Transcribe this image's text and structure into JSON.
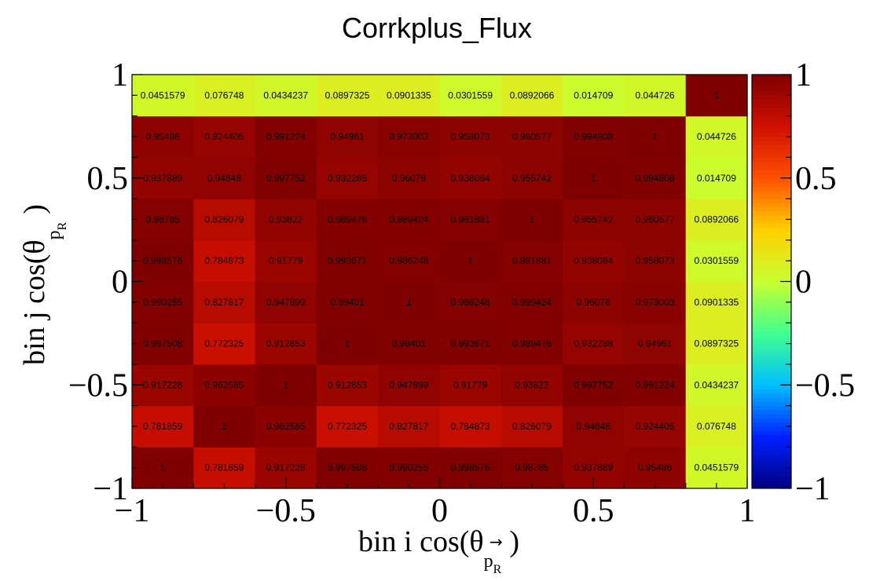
{
  "chart_data": {
    "type": "heatmap",
    "title": "Corrkplus_Flux",
    "xlabel": "bin i cos(θ",
    "xlabel_sub": "p",
    "xlabel_subsub": "R",
    "xlabel_close": ")",
    "ylabel": "bin j cos(θ",
    "ylabel_sub": "p",
    "ylabel_subsub": "R",
    "ylabel_close": ")",
    "xlim": [
      -1,
      1
    ],
    "ylim": [
      -1,
      1
    ],
    "zlim": [
      -1,
      1
    ],
    "x_ticks": [
      "−1",
      "−0.5",
      "0",
      "0.5",
      "1"
    ],
    "y_ticks": [
      "−1",
      "−0.5",
      "0",
      "0.5",
      "1"
    ],
    "z_ticks": [
      "−1",
      "−0.5",
      "0",
      "0.5",
      "1"
    ],
    "colormap": [
      "#00007f",
      "#0020ff",
      "#00bfff",
      "#40ff90",
      "#c8ff30",
      "#ffd000",
      "#ff5000",
      "#d01000",
      "#7f0000"
    ],
    "values": [
      [
        "1",
        "0.781859",
        "0.917228",
        "0.997508",
        "0.990255",
        "0.998576",
        "0.98785",
        "0.937889",
        "0.95486",
        "0.0451579"
      ],
      [
        "0.781859",
        "1",
        "0.962585",
        "0.772325",
        "0.827817",
        "0.784873",
        "0.826079",
        "0.94848",
        "0.924405",
        "0.076748"
      ],
      [
        "0.917228",
        "0.962585",
        "1",
        "0.912853",
        "0.947899",
        "0.91779",
        "0.93822",
        "0.997752",
        "0.991224",
        "0.0434237"
      ],
      [
        "0.997508",
        "0.772325",
        "0.912853",
        "1",
        "0.99401",
        "0.993671",
        "0.989476",
        "0.932288",
        "0.94961",
        "0.0897325"
      ],
      [
        "0.990255",
        "0.827817",
        "0.947899",
        "0.99401",
        "1",
        "0.986248",
        "0.989424",
        "0.96078",
        "0.973003",
        "0.0901335"
      ],
      [
        "0.998576",
        "0.784873",
        "0.91779",
        "0.993671",
        "0.986248",
        "1",
        "0.981881",
        "0.938084",
        "0.958073",
        "0.0301559"
      ],
      [
        "0.98785",
        "0.826079",
        "0.93822",
        "0.989476",
        "0.989424",
        "0.981881",
        "1",
        "0.955742",
        "0.960577",
        "0.0892066"
      ],
      [
        "0.937889",
        "0.94848",
        "0.997752",
        "0.932288",
        "0.96078",
        "0.938084",
        "0.955742",
        "1",
        "0.994808",
        "0.014709"
      ],
      [
        "0.95486",
        "0.924405",
        "0.991224",
        "0.94961",
        "0.973003",
        "0.958073",
        "0.960577",
        "0.994808",
        "1",
        "0.044726"
      ],
      [
        "0.0451579",
        "0.076748",
        "0.0434237",
        "0.0897325",
        "0.0901335",
        "0.0301559",
        "0.0892066",
        "0.014709",
        "0.044726",
        "1"
      ]
    ]
  }
}
